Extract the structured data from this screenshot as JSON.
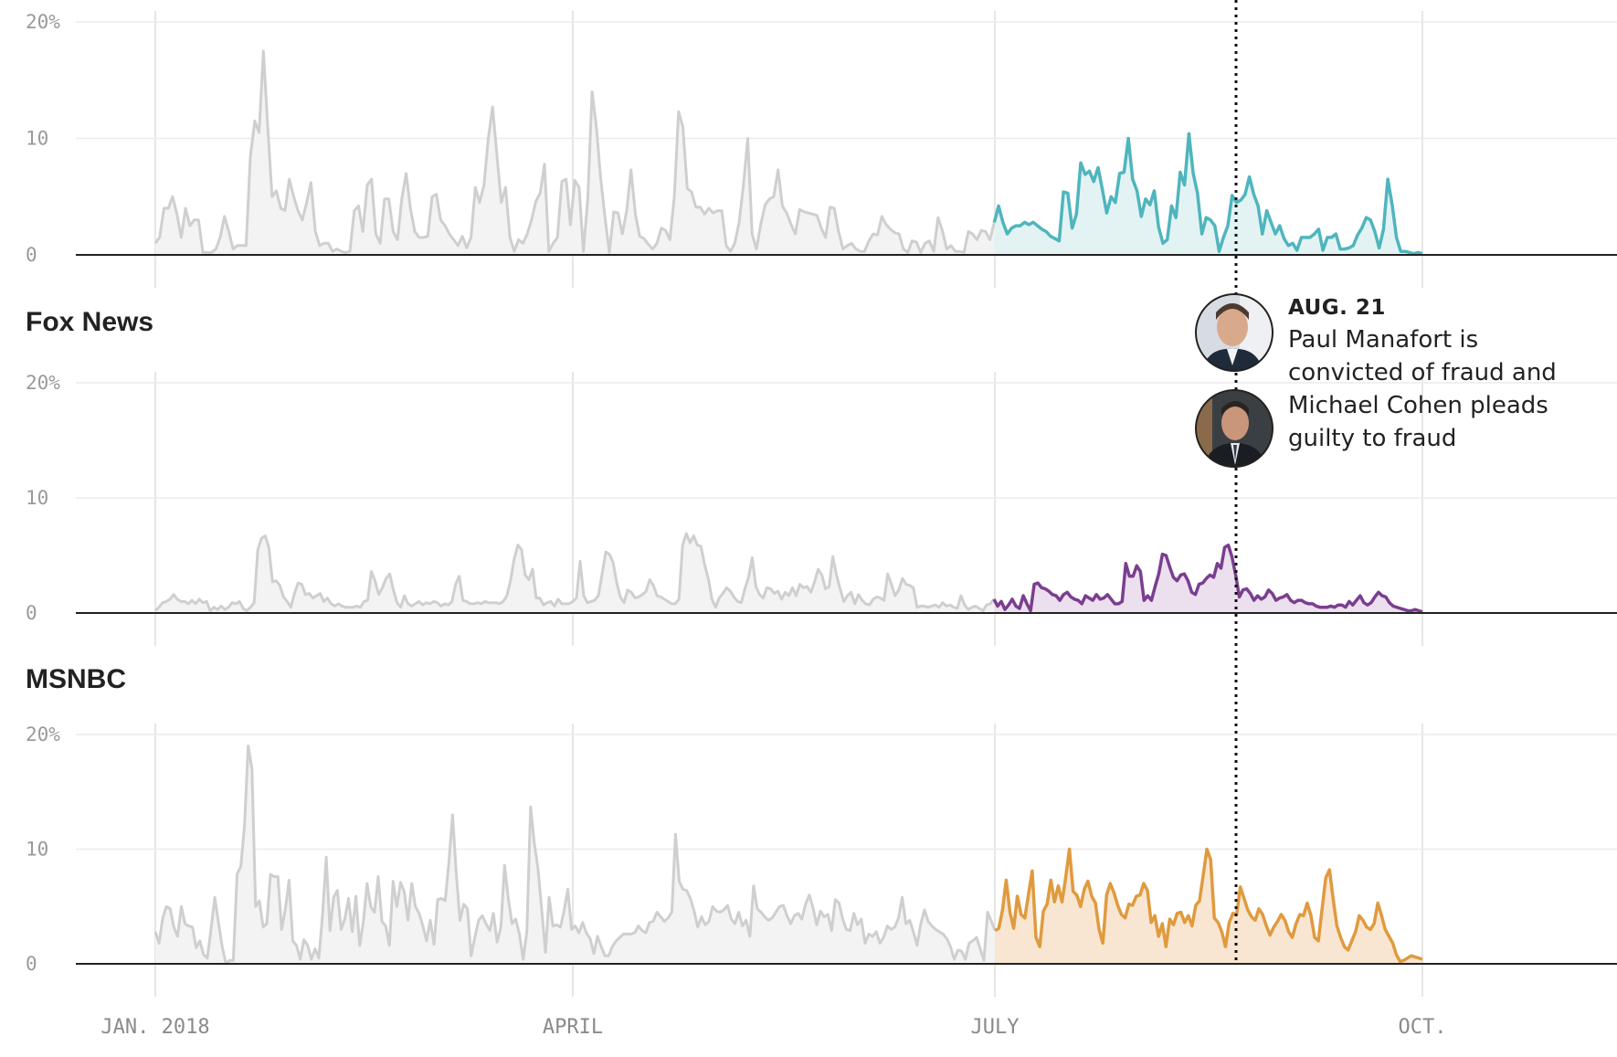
{
  "chart_data": {
    "type": "area",
    "x_tick_labels": [
      "JAN. 2018",
      "APRIL",
      "JULY",
      "OCT."
    ],
    "y_tick_labels": [
      "0",
      "10",
      "20%"
    ],
    "ylim": [
      0,
      20
    ],
    "highlight_start": "JULY",
    "panels": [
      {
        "name": "",
        "highlight_color": "#4fb5bd",
        "highlight_fill": "#e3f3f4",
        "values": [
          1,
          1.5,
          4,
          4,
          5,
          3.5,
          1.5,
          4,
          2.5,
          3,
          3,
          0.2,
          0.2,
          0.2,
          0.5,
          1.5,
          3.3,
          2,
          0.5,
          0.8,
          0.8,
          0.8,
          8.5,
          11.5,
          10.5,
          17.5,
          11,
          5,
          5.5,
          4,
          3.8,
          6.5,
          5,
          3.8,
          3,
          4.5,
          6.2,
          2,
          0.8,
          1,
          1,
          0.3,
          0.5,
          0.3,
          0.2,
          0.3,
          3.8,
          4.2,
          2,
          6,
          6.5,
          1.8,
          1,
          4.8,
          4.8,
          2,
          1.3,
          4.8,
          7,
          4,
          2,
          1.5,
          1.5,
          1.6,
          5,
          5.2,
          3,
          2.5,
          1.8,
          1.3,
          0.8,
          1.6,
          0.6,
          1.5,
          5.8,
          4.5,
          6,
          10,
          12.7,
          8.5,
          4.5,
          5.8,
          1.5,
          0.3,
          1.3,
          1,
          1.8,
          3,
          4.6,
          5.3,
          7.8,
          0.3,
          1,
          1.5,
          6.3,
          6.5,
          2.6,
          6.4,
          5.8,
          0.3,
          4.8,
          14,
          11,
          6.5,
          3.2,
          0.2,
          3.7,
          3.6,
          1.8,
          3.8,
          7.3,
          3.5,
          1.6,
          1.4,
          0.9,
          0.5,
          1,
          2.3,
          2.1,
          1.3,
          5,
          12.3,
          11,
          5.7,
          5.4,
          4.1,
          4.1,
          3.5,
          4,
          3.6,
          3.8,
          3.8,
          0.8,
          0.3,
          1,
          2.8,
          6,
          10,
          1.8,
          0.5,
          2.6,
          4.3,
          4.8,
          5,
          7.3,
          4.2,
          3.6,
          2.6,
          1.8,
          3.9,
          3.7,
          3.6,
          3.5,
          3.4,
          2.3,
          1.5,
          4.1,
          4,
          2,
          0.5,
          0.8,
          1,
          0.5,
          0.3,
          0.3,
          1.2,
          1.8,
          1.7,
          3.3,
          2.6,
          2.2,
          1.9,
          1.8,
          0.5,
          0.2,
          1.2,
          1.1,
          0.2,
          1,
          1.2,
          0.3,
          3.2,
          2.1,
          0.5,
          0.8,
          0.3,
          0.3,
          0.2,
          2,
          1.8,
          1.3,
          2.1,
          2,
          1.3,
          2.8,
          4.2,
          2.8,
          1.8,
          2.3,
          2.5,
          2.5,
          2.8,
          2.6,
          2.8,
          2.5,
          2.2,
          2,
          1.6,
          1.4,
          1.2,
          5.4,
          5.3,
          2.3,
          3.5,
          7.9,
          6.9,
          7.2,
          6.3,
          7.5,
          5.6,
          3.6,
          5,
          4.5,
          7,
          7.1,
          10,
          6.5,
          5.5,
          3.3,
          4.8,
          4.3,
          5.5,
          2.4,
          1,
          1.3,
          4.2,
          3.2,
          7.1,
          6,
          10.4,
          7,
          5.3,
          1.8,
          3.2,
          3,
          2.5,
          0.3,
          1.5,
          2.5,
          5.1,
          4.5,
          4.7,
          5.2,
          6.7,
          5.2,
          4.2,
          1.8,
          3.8,
          2.8,
          1.8,
          2.5,
          1.4,
          0.8,
          1,
          0.4,
          1.5,
          1.5,
          1.5,
          1.8,
          2.2,
          0.4,
          1.5,
          1.5,
          1.8,
          0.5,
          0.5,
          0.6,
          0.8,
          1.7,
          2.3,
          3.2,
          3,
          2,
          0.6,
          2.2,
          6.5,
          4.3,
          1.5,
          0.3,
          0.3,
          0.2,
          0.1,
          0.2,
          0.1
        ]
      },
      {
        "name": "Fox News",
        "highlight_color": "#7a3e8f",
        "highlight_fill": "#ece0ef",
        "values": [
          0.2,
          0.5,
          0.9,
          1,
          1.2,
          1.6,
          1.2,
          1,
          1,
          0.8,
          1.1,
          0.8,
          1.2,
          0.9,
          1,
          0.2,
          0.5,
          0.3,
          0.6,
          0.3,
          0.5,
          0.9,
          0.8,
          1,
          0.4,
          0.2,
          0.5,
          0.9,
          5.5,
          6.5,
          6.7,
          5.7,
          2.7,
          2.8,
          2.4,
          1.4,
          1,
          0.5,
          1.7,
          2.6,
          2.5,
          1.6,
          1.7,
          1.3,
          1.5,
          1.7,
          1,
          1.3,
          0.8,
          0.6,
          0.8,
          0.6,
          0.5,
          0.5,
          0.5,
          0.6,
          0.5,
          1,
          1.1,
          3.6,
          2.8,
          1.6,
          2.2,
          3,
          3.4,
          2,
          0.9,
          0.5,
          1.5,
          0.8,
          0.6,
          0.8,
          1,
          0.7,
          0.9,
          0.8,
          1,
          0.9,
          0.6,
          0.8,
          0.7,
          1,
          2.5,
          3.2,
          1.1,
          1,
          0.8,
          0.8,
          0.9,
          0.8,
          1,
          0.9,
          0.9,
          0.9,
          0.8,
          1,
          1.5,
          2.8,
          4.7,
          5.9,
          5.5,
          3.3,
          2.9,
          3.8,
          1.3,
          1.3,
          0.7,
          0.9,
          1,
          0.6,
          1.2,
          0.8,
          0.8,
          0.8,
          1,
          1.3,
          4.5,
          1.5,
          0.9,
          1,
          1.1,
          1.5,
          3.4,
          5.3,
          5.1,
          4.4,
          2.6,
          1.4,
          0.9,
          2,
          1.8,
          1.3,
          1.4,
          1.6,
          1.9,
          2.9,
          2.4,
          1.5,
          1.4,
          1.2,
          1,
          0.8,
          0.8,
          1.2,
          5.9,
          6.9,
          6.1,
          6.7,
          5.9,
          5.8,
          4.2,
          3,
          1.2,
          0.5,
          1.3,
          1.7,
          2.2,
          1.9,
          1.4,
          1,
          0.9,
          2.1,
          3.1,
          4.8,
          2.3,
          1.6,
          1.3,
          2.2,
          2.1,
          1.7,
          1.9,
          1.2,
          1.8,
          1.5,
          2.2,
          1.5,
          2.5,
          2.2,
          2.3,
          1.8,
          2.7,
          3.8,
          3.3,
          2.1,
          2.3,
          4.9,
          3.3,
          2.1,
          1,
          1.5,
          1.8,
          0.8,
          1.6,
          1.1,
          0.8,
          0.7,
          1.2,
          1.4,
          1.3,
          1.1,
          3.4,
          2.5,
          1.5,
          2,
          3,
          2.5,
          2.4,
          2.2,
          0.5,
          0.6,
          0.6,
          0.5,
          0.6,
          0.7,
          0.5,
          0.9,
          0.6,
          0.7,
          0.5,
          0.4,
          1.5,
          0.7,
          0.3,
          0.5,
          0.6,
          0.4,
          0.2,
          0.7,
          0.8,
          1.2,
          0.6,
          1,
          0.3,
          0.7,
          1.2,
          0.6,
          0.4,
          1.5,
          0.8,
          0.2,
          2.5,
          2.6,
          2.2,
          2.1,
          1.9,
          1.6,
          1.5,
          1.1,
          1.6,
          1.8,
          1.4,
          1.2,
          1.1,
          0.8,
          1.5,
          1.3,
          1.1,
          1.6,
          1.2,
          1.3,
          1.6,
          1.2,
          0.8,
          0.8,
          1,
          4.3,
          3.2,
          3.2,
          4.1,
          3.6,
          1.1,
          1.5,
          1.1,
          2.3,
          3.4,
          5.1,
          5,
          4,
          3.1,
          2.8,
          3.3,
          3.4,
          2.8,
          1.8,
          1.6,
          2.5,
          2.6,
          3,
          3.3,
          3.1,
          4.3,
          3.9,
          5.7,
          5.9,
          4.9,
          3.3,
          1.4,
          2,
          2.1,
          1.7,
          1.1,
          1.5,
          1.2,
          1.4,
          2,
          1.7,
          1.1,
          1.3,
          1.4,
          1.6,
          1.1,
          0.9,
          1.1,
          1.1,
          0.9,
          0.8,
          0.8,
          0.6,
          0.5,
          0.5,
          0.5,
          0.6,
          0.5,
          0.7,
          0.7,
          0.5,
          1,
          0.7,
          1.1,
          1.5,
          0.9,
          0.7,
          0.9,
          1.4,
          1.8,
          1.5,
          1.4,
          0.9,
          0.6,
          0.5,
          0.4,
          0.3,
          0.2,
          0.2,
          0.3,
          0.2,
          0.1
        ]
      },
      {
        "name": "MSNBC",
        "highlight_color": "#e09a3e",
        "highlight_fill": "#f9e6d2",
        "values": [
          2.8,
          1.8,
          4,
          5,
          4.8,
          3.2,
          2.4,
          5,
          3.5,
          3.3,
          3.2,
          1.4,
          2,
          0.8,
          0.5,
          3,
          5.8,
          3.6,
          1.5,
          0,
          0.3,
          0.3,
          7.8,
          8.5,
          12,
          19,
          17,
          5,
          5.5,
          3.2,
          3.5,
          7.8,
          7.6,
          7.6,
          3,
          4.8,
          7.3,
          2,
          1.6,
          0.4,
          2.1,
          1.6,
          0.4,
          1.3,
          0.5,
          4.2,
          9.3,
          2.9,
          5.8,
          6.4,
          3,
          3.9,
          5.7,
          2.8,
          5.9,
          1.6,
          3.7,
          7,
          5,
          4.5,
          7.6,
          3.7,
          3.3,
          1.6,
          7.2,
          5,
          7.1,
          6.3,
          3.8,
          7,
          5,
          4.4,
          3.3,
          2,
          3.8,
          1.7,
          5.6,
          5.7,
          5.5,
          8.8,
          13,
          7.8,
          3.8,
          5.2,
          4.8,
          0.7,
          2.3,
          3.8,
          4.2,
          3.5,
          2.9,
          4.4,
          1.9,
          3.2,
          8.6,
          5.7,
          3.5,
          3.9,
          2.6,
          0.4,
          2.8,
          13.7,
          10.5,
          8.3,
          4.7,
          1,
          5.8,
          3.3,
          3.4,
          3.2,
          4.6,
          6.5,
          3,
          3.3,
          2.7,
          3.6,
          2.7,
          2.2,
          0.9,
          2.4,
          1.5,
          0.7,
          0.7,
          1.5,
          2,
          2.3,
          2.6,
          2.6,
          2.6,
          2.7,
          3.3,
          2.9,
          2.7,
          3.6,
          3.7,
          4.5,
          4.1,
          3.7,
          4,
          4.5,
          11.3,
          7.2,
          6.5,
          6.4,
          5.7,
          4.6,
          3.2,
          4.1,
          3.4,
          3.7,
          5,
          4.6,
          4.5,
          4.7,
          5.1,
          3.9,
          3.5,
          4.5,
          3.3,
          3.8,
          2.4,
          6.8,
          4.8,
          4.5,
          4.1,
          3.8,
          4,
          4.5,
          5,
          5.1,
          4.2,
          3.5,
          4.2,
          4.4,
          3.9,
          5.2,
          6,
          4.9,
          3.4,
          4.6,
          4.1,
          4.3,
          2.9,
          5.6,
          5.3,
          3.9,
          3,
          2.9,
          4.4,
          3.4,
          3.9,
          1.8,
          2.6,
          2.4,
          2.8,
          1.8,
          2.3,
          3.3,
          3,
          3.2,
          4,
          5.8,
          3.5,
          3.8,
          2.8,
          1.6,
          3.5,
          4.7,
          3.7,
          3.3,
          3,
          2.8,
          2.6,
          2.2,
          1.5,
          0.4,
          1.2,
          1.1,
          0.4,
          1.8,
          2,
          2.3,
          1.3,
          0.3,
          4.5,
          3.7,
          2.9,
          3.1,
          4.7,
          7.3,
          4.5,
          3.1,
          5.9,
          4.3,
          4,
          6.1,
          8.1,
          2.3,
          1.5,
          4.6,
          5.2,
          7.3,
          5.4,
          6.8,
          5.4,
          7.5,
          10,
          6.3,
          6,
          5,
          6.5,
          7.2,
          5.9,
          5.3,
          3,
          1.8,
          6,
          7,
          6.2,
          5.1,
          4.3,
          4,
          5.2,
          5.1,
          5.9,
          6,
          7,
          6.4,
          3.6,
          4.2,
          2.4,
          3.5,
          1.5,
          3.9,
          3.4,
          4.4,
          4.5,
          3.6,
          4.2,
          3.3,
          5.1,
          5.5,
          7.7,
          10,
          9.1,
          4,
          3.6,
          2.8,
          1.5,
          3.6,
          4.4,
          4.3,
          6.7,
          5.7,
          4.7,
          4.1,
          3.8,
          4.8,
          4.3,
          3.3,
          2.5,
          3.2,
          3.7,
          4.3,
          3.8,
          2.8,
          2.3,
          3.5,
          4.3,
          4.2,
          5.3,
          4.2,
          2.3,
          2,
          4.8,
          7.5,
          8.2,
          5.6,
          3.3,
          2.3,
          1.5,
          1.2,
          2,
          2.8,
          4.2,
          3.8,
          3.2,
          3,
          3.5,
          5.3,
          4.2,
          3,
          2.4,
          1.8,
          0.8,
          0.2,
          0.3,
          0.5,
          0.7,
          0.6,
          0.5,
          0.4
        ]
      }
    ],
    "annotation": {
      "date": "AUG. 21",
      "text": "Paul Manafort is convicted of fraud and Michael Cohen pleads guilty to fraud"
    }
  }
}
